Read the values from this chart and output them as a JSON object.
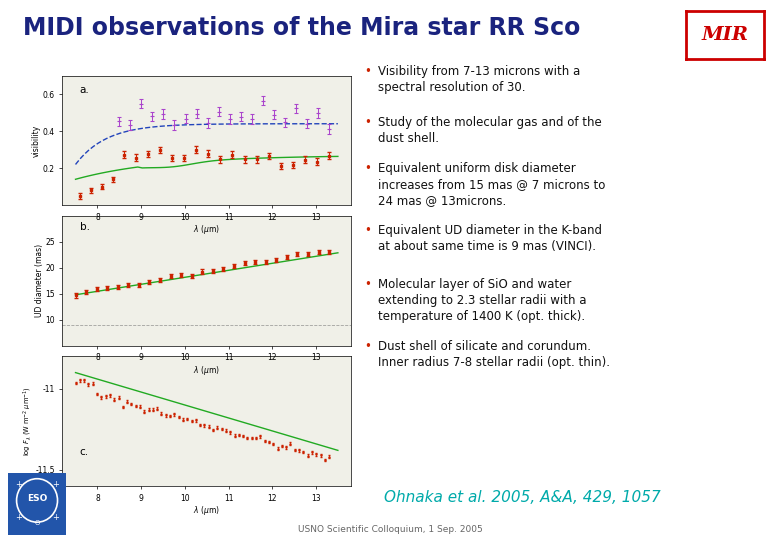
{
  "title": "MIDI observations of the Mira star RR Sco",
  "title_color": "#1a237e",
  "title_fontsize": 17,
  "mir_text": "MIR",
  "mir_color": "#cc0000",
  "bullet_points": [
    "Visibility from 7-13 microns with a\nspectral resolution of 30.",
    "Study of the molecular gas and of the\ndust shell.",
    "Equivalent uniform disk diameter\nincreases from 15 mas @ 7 microns to\n24 mas @ 13microns.",
    "Equivalent UD diameter in the K-band\nat about same time is 9 mas (VINCI).",
    "Molecular layer of SiO and water\nextending to 2.3 stellar radii with a\ntemperature of 1400 K (opt. thick).",
    "Dust shell of silicate and corundum.\nInner radius 7-8 stellar radii (opt. thin)."
  ],
  "bullet_color": "#111111",
  "bullet_fontsize": 8.5,
  "citation": "Ohnaka et al. 2005, A&A, 429, 1057",
  "citation_color": "#00aaaa",
  "citation_fontsize": 11,
  "footer": "USNO Scientific Colloquium, 1 Sep. 2005",
  "footer_color": "#666666",
  "footer_fontsize": 6.5,
  "background_color": "#ffffff",
  "panel_a_label": "a.",
  "panel_b_label": "b.",
  "panel_c_label": "c.",
  "plot_bg": "#f0f0e8",
  "green_color": "#22aa22",
  "red_color": "#cc2200",
  "blue_dashed_color": "#2244bb",
  "purple_color": "#aa44cc"
}
